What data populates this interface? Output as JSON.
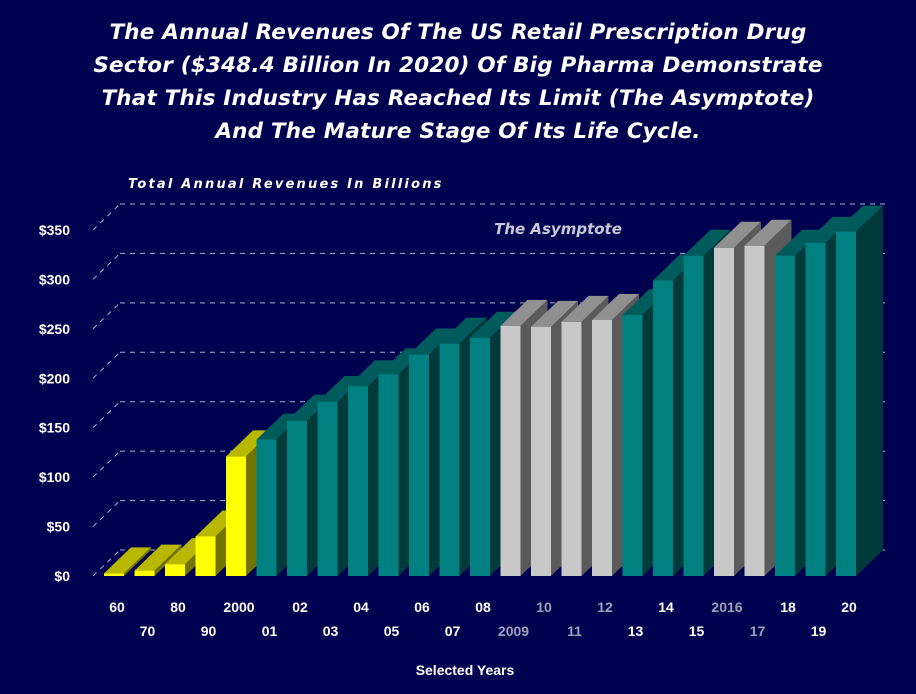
{
  "title_lines": [
    "The Annual Revenues Of The US Retail Prescription Drug",
    "Sector ($348.4 Billion In 2020) Of Big Pharma Demonstrate",
    "That This Industry Has Reached Its Limit (The Asymptote)",
    "And The Mature Stage Of Its Life Cycle."
  ],
  "colors": {
    "background": "#000050",
    "yellow": "#ffff00",
    "teal": "#008080",
    "silver": "#c8c8c8",
    "text": "#ffffff",
    "muted_label": "#a0a0b8"
  },
  "chart_data": {
    "type": "bar",
    "title": "",
    "ylabel": "Total Annual Revenues In Billions",
    "xlabel": "Selected Years",
    "ylim": [
      0,
      350
    ],
    "yticks": [
      "$0",
      "$50",
      "$100",
      "$150",
      "$200",
      "$250",
      "$300",
      "$350"
    ],
    "grid": true,
    "annotation": "The Asymptote",
    "categories": [
      "60",
      "70",
      "80",
      "90",
      "2000",
      "01",
      "02",
      "03",
      "04",
      "05",
      "06",
      "07",
      "08",
      "2009",
      "10",
      "11",
      "12",
      "13",
      "14",
      "15",
      "2016",
      "17",
      "18",
      "19",
      "20"
    ],
    "values": [
      2.7,
      5.5,
      12,
      40,
      121,
      138,
      157,
      176,
      192,
      204,
      224,
      235,
      241,
      253,
      252,
      257,
      259,
      264,
      299,
      324,
      332,
      334,
      324,
      337,
      348.4
    ],
    "bar_colors": [
      "yellow",
      "yellow",
      "yellow",
      "yellow",
      "yellow",
      "teal",
      "teal",
      "teal",
      "teal",
      "teal",
      "teal",
      "teal",
      "teal",
      "silver",
      "silver",
      "silver",
      "silver",
      "teal",
      "teal",
      "teal",
      "silver",
      "silver",
      "teal",
      "teal",
      "teal"
    ],
    "highlighted_labels": [
      "2009",
      "10",
      "11",
      "12",
      "2016",
      "17"
    ]
  }
}
